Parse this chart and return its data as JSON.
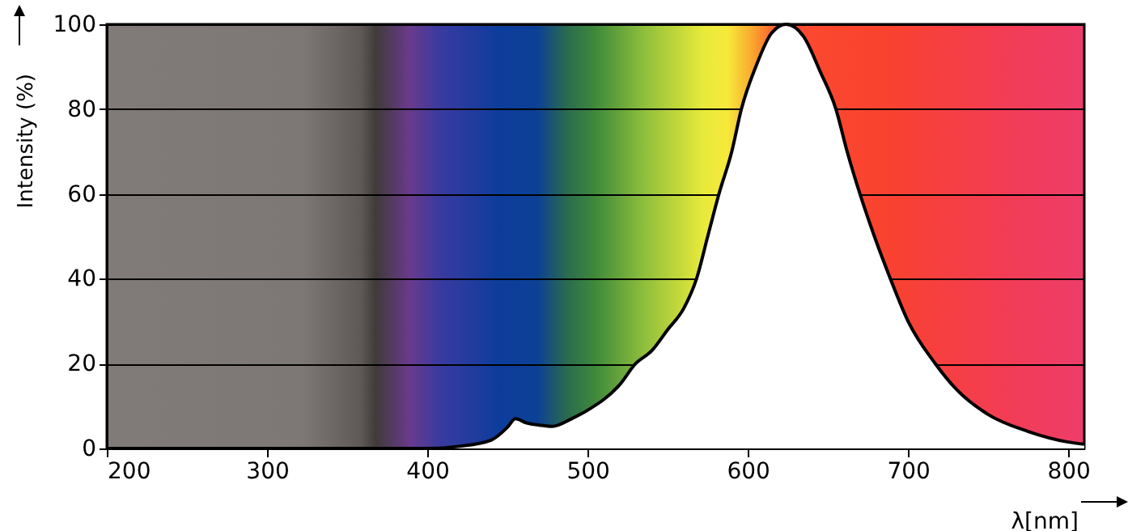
{
  "chart_data": {
    "type": "line",
    "xlabel": "λ[nm]",
    "ylabel": "Intensity (%)",
    "xlim": [
      200,
      810
    ],
    "ylim": [
      0,
      100
    ],
    "xticks": [
      200,
      300,
      400,
      500,
      600,
      700,
      800
    ],
    "yticks": [
      0,
      20,
      40,
      60,
      80,
      100
    ],
    "grid": "y",
    "x": [
      200,
      250,
      300,
      350,
      380,
      400,
      420,
      440,
      450,
      455,
      462,
      470,
      478,
      490,
      500,
      520,
      530,
      540,
      550,
      560,
      568,
      575,
      582,
      590,
      596,
      605,
      615,
      624,
      635,
      645,
      655,
      662,
      670,
      679,
      689,
      700,
      717,
      730,
      750,
      775,
      800,
      810
    ],
    "series": [
      {
        "color": "#000000",
        "values": [
          0,
          0,
          0,
          0,
          0,
          0,
          0.5,
          2,
          5,
          7,
          6,
          5.5,
          5.2,
          7,
          9,
          15,
          20,
          23,
          28,
          33,
          40,
          50,
          60,
          70,
          80,
          90,
          98,
          100,
          97,
          89,
          80,
          70,
          60,
          50,
          40,
          30,
          20,
          14,
          8,
          4,
          1.5,
          1
        ]
      }
    ]
  }
}
